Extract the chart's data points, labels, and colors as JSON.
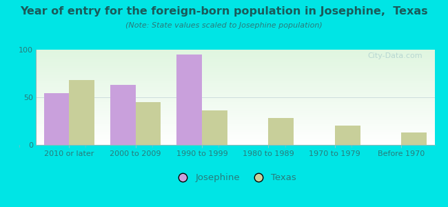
{
  "title": "Year of entry for the foreign-born population in Josephine,  Texas",
  "subtitle": "(Note: State values scaled to Josephine population)",
  "categories": [
    "2010 or later",
    "2000 to 2009",
    "1990 to 1999",
    "1980 to 1989",
    "1970 to 1979",
    "Before 1970"
  ],
  "josephine_values": [
    54,
    63,
    95,
    0,
    0,
    0
  ],
  "texas_values": [
    68,
    45,
    36,
    28,
    20,
    13
  ],
  "josephine_color": "#c9a0dc",
  "texas_color": "#c8cf9a",
  "background_color": "#00e5e5",
  "ylim": [
    0,
    100
  ],
  "yticks": [
    0,
    50,
    100
  ],
  "bar_width": 0.38,
  "watermark": "City-Data.com",
  "legend_josephine": "Josephine",
  "legend_texas": "Texas",
  "title_color": "#1a5a5a",
  "subtitle_color": "#2a7a7a",
  "tick_color": "#2a7a7a",
  "title_fontsize": 11.5,
  "subtitle_fontsize": 8.0,
  "tick_fontsize": 8.0
}
